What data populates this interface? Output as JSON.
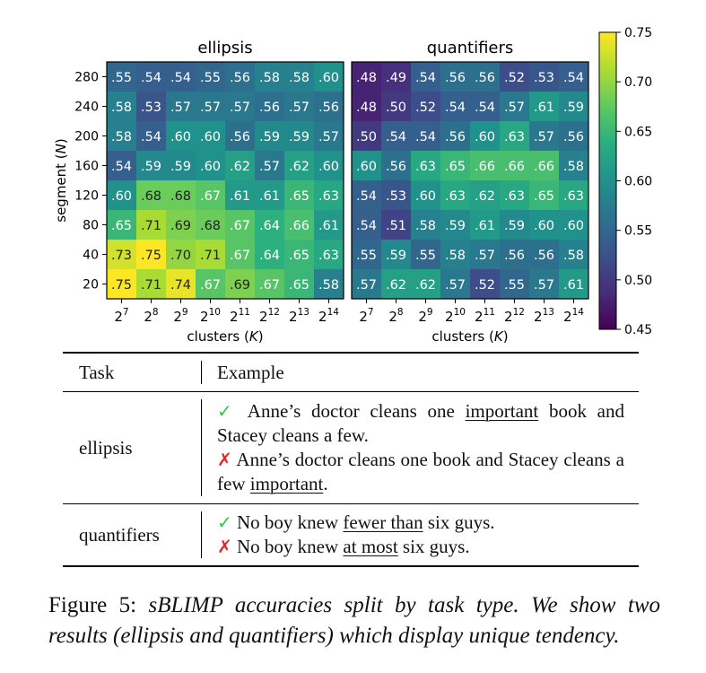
{
  "chart_data": [
    {
      "type": "heatmap",
      "title": "ellipsis",
      "xlabel": "clusters (K)",
      "ylabel": "segment (N)",
      "x_base": "2",
      "x_exponents": [
        "7",
        "8",
        "9",
        "10",
        "11",
        "12",
        "13",
        "14"
      ],
      "y_categories": [
        "280",
        "240",
        "200",
        "160",
        "120",
        "80",
        "40",
        "20"
      ],
      "cells": [
        [
          ".55",
          ".54",
          ".54",
          ".55",
          ".56",
          ".58",
          ".58",
          ".60"
        ],
        [
          ".58",
          ".53",
          ".57",
          ".57",
          ".57",
          ".56",
          ".57",
          ".56"
        ],
        [
          ".58",
          ".54",
          ".60",
          ".60",
          ".56",
          ".59",
          ".59",
          ".57"
        ],
        [
          ".54",
          ".59",
          ".59",
          ".60",
          ".62",
          ".57",
          ".62",
          ".60"
        ],
        [
          ".60",
          ".68",
          ".68",
          ".67",
          ".61",
          ".61",
          ".65",
          ".63"
        ],
        [
          ".65",
          ".71",
          ".69",
          ".68",
          ".67",
          ".64",
          ".66",
          ".61"
        ],
        [
          ".73",
          ".75",
          ".70",
          ".71",
          ".67",
          ".64",
          ".65",
          ".63"
        ],
        [
          ".75",
          ".71",
          ".74",
          ".67",
          ".69",
          ".67",
          ".65",
          ".58"
        ]
      ]
    },
    {
      "type": "heatmap",
      "title": "quantifiers",
      "xlabel": "clusters (K)",
      "x_base": "2",
      "x_exponents": [
        "7",
        "8",
        "9",
        "10",
        "11",
        "12",
        "13",
        "14"
      ],
      "y_categories": [
        "280",
        "240",
        "200",
        "160",
        "120",
        "80",
        "40",
        "20"
      ],
      "cells": [
        [
          ".48",
          ".49",
          ".54",
          ".56",
          ".56",
          ".52",
          ".53",
          ".54"
        ],
        [
          ".48",
          ".50",
          ".52",
          ".54",
          ".54",
          ".57",
          ".61",
          ".59"
        ],
        [
          ".50",
          ".54",
          ".54",
          ".56",
          ".60",
          ".63",
          ".57",
          ".56"
        ],
        [
          ".60",
          ".56",
          ".63",
          ".65",
          ".66",
          ".66",
          ".66",
          ".58"
        ],
        [
          ".54",
          ".53",
          ".60",
          ".63",
          ".62",
          ".63",
          ".65",
          ".63"
        ],
        [
          ".54",
          ".51",
          ".58",
          ".59",
          ".61",
          ".59",
          ".60",
          ".60"
        ],
        [
          ".55",
          ".59",
          ".55",
          ".58",
          ".57",
          ".56",
          ".56",
          ".58"
        ],
        [
          ".57",
          ".62",
          ".62",
          ".57",
          ".52",
          ".55",
          ".57",
          ".61"
        ]
      ]
    }
  ],
  "colorbar": {
    "vmin": 0.45,
    "vmax": 0.75,
    "ticks": [
      "0.45",
      "0.50",
      "0.55",
      "0.60",
      "0.65",
      "0.70",
      "0.75"
    ]
  },
  "table": {
    "header": {
      "task": "Task",
      "example": "Example"
    },
    "rows": [
      {
        "task": "ellipsis",
        "good_mark": "✓",
        "good": {
          "pre": " Anne’s doctor cleans one ",
          "u": "important",
          "post": " book and Stacey cleans a few."
        },
        "bad_mark": "✗",
        "bad": {
          "pre": " Anne’s doctor cleans one book and Stacey cleans a few ",
          "u": "important",
          "post": "."
        }
      },
      {
        "task": "quantifiers",
        "good_mark": "✓",
        "good": {
          "pre": " No boy knew ",
          "u": "fewer than",
          "post": " six guys."
        },
        "bad_mark": "✗",
        "bad": {
          "pre": " No boy knew ",
          "u": "at most",
          "post": " six guys."
        }
      }
    ]
  },
  "caption": {
    "label": "Figure 5: ",
    "text": "sBLIMP accuracies split by task type. We show two results (ellipsis and quantifiers) which display unique tendency."
  }
}
